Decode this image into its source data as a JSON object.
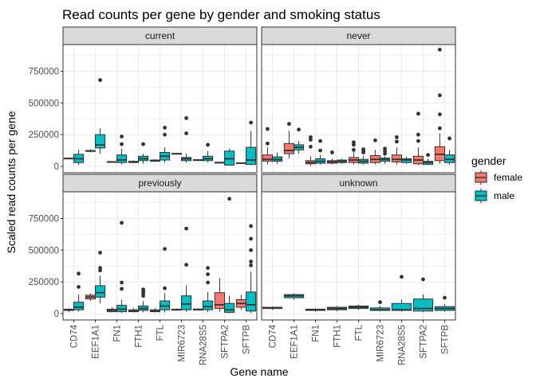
{
  "chart_data": {
    "type": "boxplot",
    "title": "Read counts per gene by gender and smoking status",
    "xlabel": "Gene name",
    "ylabel": "Scaled read counts per gene",
    "ylim": [
      -50000,
      960000
    ],
    "y_ticks": [
      0,
      250000,
      500000,
      750000
    ],
    "y_tick_labels": [
      "0",
      "250000",
      "500000",
      "750000"
    ],
    "categories": [
      "CD74",
      "EEF1A1",
      "FN1",
      "FTH1",
      "FTL",
      "MIR6723",
      "RNA28S5",
      "SFTPA2",
      "SFTPB"
    ],
    "legend": {
      "title": "gender",
      "position": "right",
      "entries": [
        {
          "label": "female",
          "color": "#F8766D"
        },
        {
          "label": "male",
          "color": "#00BFC4"
        }
      ]
    },
    "grid": true,
    "colors": {
      "female": "#F8766D",
      "male": "#00BFC4",
      "strip": "#D9D9D9",
      "grid": "#EBEBEB",
      "border": "#333333"
    },
    "panels": [
      {
        "label": "current",
        "boxes": [
          {
            "gene": "CD74",
            "gender": "female",
            "min": 55000,
            "q1": 60000,
            "median": 62000,
            "q3": 65000,
            "max": 68000,
            "outliers": []
          },
          {
            "gene": "CD74",
            "gender": "male",
            "min": 10000,
            "q1": 30000,
            "median": 60000,
            "q3": 95000,
            "max": 130000,
            "outliers": []
          },
          {
            "gene": "EEF1A1",
            "gender": "female",
            "min": 110000,
            "q1": 118000,
            "median": 122000,
            "q3": 125000,
            "max": 135000,
            "outliers": []
          },
          {
            "gene": "EEF1A1",
            "gender": "male",
            "min": 100000,
            "q1": 145000,
            "median": 170000,
            "q3": 250000,
            "max": 300000,
            "outliers": [
              680000
            ]
          },
          {
            "gene": "FN1",
            "gender": "female",
            "min": 30000,
            "q1": 32000,
            "median": 35000,
            "q3": 38000,
            "max": 40000,
            "outliers": []
          },
          {
            "gene": "FN1",
            "gender": "male",
            "min": 15000,
            "q1": 30000,
            "median": 50000,
            "q3": 90000,
            "max": 140000,
            "outliers": [
              175000,
              235000
            ]
          },
          {
            "gene": "FTH1",
            "gender": "female",
            "min": 25000,
            "q1": 30000,
            "median": 35000,
            "q3": 40000,
            "max": 45000,
            "outliers": []
          },
          {
            "gene": "FTH1",
            "gender": "male",
            "min": 20000,
            "q1": 45000,
            "median": 60000,
            "q3": 80000,
            "max": 100000,
            "outliers": [
              175000
            ]
          },
          {
            "gene": "FTL",
            "gender": "female",
            "min": 35000,
            "q1": 40000,
            "median": 45000,
            "q3": 50000,
            "max": 55000,
            "outliers": []
          },
          {
            "gene": "FTL",
            "gender": "male",
            "min": 30000,
            "q1": 50000,
            "median": 80000,
            "q3": 110000,
            "max": 150000,
            "outliers": [
              250000,
              305000
            ]
          },
          {
            "gene": "MIR6723",
            "gender": "female",
            "min": 95000,
            "q1": 97000,
            "median": 100000,
            "q3": 102000,
            "max": 105000,
            "outliers": []
          },
          {
            "gene": "MIR6723",
            "gender": "male",
            "min": 30000,
            "q1": 45000,
            "median": 60000,
            "q3": 70000,
            "max": 100000,
            "outliers": [
              260000,
              380000
            ]
          },
          {
            "gene": "RNA28S5",
            "gender": "female",
            "min": 45000,
            "q1": 48000,
            "median": 50000,
            "q3": 52000,
            "max": 55000,
            "outliers": []
          },
          {
            "gene": "RNA28S5",
            "gender": "male",
            "min": 30000,
            "q1": 45000,
            "median": 60000,
            "q3": 80000,
            "max": 120000,
            "outliers": [
              170000
            ]
          },
          {
            "gene": "SFTPA2",
            "gender": "female",
            "min": 25000,
            "q1": 28000,
            "median": 30000,
            "q3": 32000,
            "max": 35000,
            "outliers": []
          },
          {
            "gene": "SFTPA2",
            "gender": "male",
            "min": 10000,
            "q1": 10000,
            "median": 60000,
            "q3": 120000,
            "max": 140000,
            "outliers": []
          },
          {
            "gene": "SFTPB",
            "gender": "female",
            "min": 20000,
            "q1": 23000,
            "median": 25000,
            "q3": 28000,
            "max": 30000,
            "outliers": []
          },
          {
            "gene": "SFTPB",
            "gender": "male",
            "min": 10000,
            "q1": 15000,
            "median": 50000,
            "q3": 150000,
            "max": 280000,
            "outliers": [
              345000
            ]
          }
        ]
      },
      {
        "label": "never",
        "boxes": [
          {
            "gene": "CD74",
            "gender": "female",
            "min": 15000,
            "q1": 40000,
            "median": 55000,
            "q3": 90000,
            "max": 150000,
            "outliers": [
              180000,
              295000
            ]
          },
          {
            "gene": "CD74",
            "gender": "male",
            "min": 20000,
            "q1": 40000,
            "median": 55000,
            "q3": 75000,
            "max": 110000,
            "outliers": []
          },
          {
            "gene": "EEF1A1",
            "gender": "female",
            "min": 60000,
            "q1": 100000,
            "median": 125000,
            "q3": 180000,
            "max": 280000,
            "outliers": [
              335000
            ]
          },
          {
            "gene": "EEF1A1",
            "gender": "male",
            "min": 100000,
            "q1": 130000,
            "median": 150000,
            "q3": 170000,
            "max": 200000,
            "outliers": [
              290000
            ]
          },
          {
            "gene": "FN1",
            "gender": "female",
            "min": 5000,
            "q1": 20000,
            "median": 30000,
            "q3": 45000,
            "max": 80000,
            "outliers": [
              155000,
              210000,
              230000
            ]
          },
          {
            "gene": "FN1",
            "gender": "male",
            "min": 15000,
            "q1": 25000,
            "median": 40000,
            "q3": 60000,
            "max": 90000,
            "outliers": [
              125000,
              200000
            ]
          },
          {
            "gene": "FTH1",
            "gender": "female",
            "min": 15000,
            "q1": 25000,
            "median": 35000,
            "q3": 45000,
            "max": 60000,
            "outliers": [
              110000
            ]
          },
          {
            "gene": "FTH1",
            "gender": "male",
            "min": 20000,
            "q1": 30000,
            "median": 40000,
            "q3": 50000,
            "max": 60000,
            "outliers": []
          },
          {
            "gene": "FTL",
            "gender": "female",
            "min": 15000,
            "q1": 30000,
            "median": 50000,
            "q3": 70000,
            "max": 120000,
            "outliers": [
              130000,
              170000,
              190000
            ]
          },
          {
            "gene": "FTL",
            "gender": "male",
            "min": 15000,
            "q1": 25000,
            "median": 40000,
            "q3": 55000,
            "max": 80000,
            "outliers": [
              110000,
              125000,
              135000
            ]
          },
          {
            "gene": "MIR6723",
            "gender": "female",
            "min": 15000,
            "q1": 30000,
            "median": 55000,
            "q3": 85000,
            "max": 130000,
            "outliers": [
              205000
            ]
          },
          {
            "gene": "MIR6723",
            "gender": "male",
            "min": 20000,
            "q1": 40000,
            "median": 55000,
            "q3": 65000,
            "max": 80000,
            "outliers": [
              100000,
              120000,
              140000
            ]
          },
          {
            "gene": "RNA28S5",
            "gender": "female",
            "min": 15000,
            "q1": 35000,
            "median": 55000,
            "q3": 90000,
            "max": 150000,
            "outliers": [
              195000,
              230000
            ]
          },
          {
            "gene": "RNA28S5",
            "gender": "male",
            "min": 20000,
            "q1": 30000,
            "median": 50000,
            "q3": 60000,
            "max": 75000,
            "outliers": []
          },
          {
            "gene": "SFTPA2",
            "gender": "female",
            "min": 10000,
            "q1": 20000,
            "median": 50000,
            "q3": 80000,
            "max": 150000,
            "outliers": [
              200000,
              250000,
              415000
            ]
          },
          {
            "gene": "SFTPA2",
            "gender": "male",
            "min": 10000,
            "q1": 15000,
            "median": 30000,
            "q3": 40000,
            "max": 60000,
            "outliers": [
              90000
            ]
          },
          {
            "gene": "SFTPB",
            "gender": "female",
            "min": 20000,
            "q1": 45000,
            "median": 95000,
            "q3": 155000,
            "max": 260000,
            "outliers": [
              300000,
              410000,
              560000,
              920000
            ]
          },
          {
            "gene": "SFTPB",
            "gender": "male",
            "min": 15000,
            "q1": 30000,
            "median": 55000,
            "q3": 90000,
            "max": 130000,
            "outliers": [
              220000
            ]
          }
        ]
      },
      {
        "label": "previously",
        "boxes": [
          {
            "gene": "CD74",
            "gender": "female",
            "min": 10000,
            "q1": 25000,
            "median": 30000,
            "q3": 35000,
            "max": 40000,
            "outliers": []
          },
          {
            "gene": "CD74",
            "gender": "male",
            "min": 15000,
            "q1": 30000,
            "median": 50000,
            "q3": 90000,
            "max": 150000,
            "outliers": [
              210000,
              315000
            ]
          },
          {
            "gene": "EEF1A1",
            "gender": "female",
            "min": 100000,
            "q1": 115000,
            "median": 130000,
            "q3": 145000,
            "max": 160000,
            "outliers": []
          },
          {
            "gene": "EEF1A1",
            "gender": "male",
            "min": 80000,
            "q1": 130000,
            "median": 165000,
            "q3": 220000,
            "max": 300000,
            "outliers": [
              340000,
              360000,
              480000
            ]
          },
          {
            "gene": "FN1",
            "gender": "female",
            "min": 10000,
            "q1": 15000,
            "median": 25000,
            "q3": 35000,
            "max": 50000,
            "outliers": []
          },
          {
            "gene": "FN1",
            "gender": "male",
            "min": 5000,
            "q1": 15000,
            "median": 35000,
            "q3": 65000,
            "max": 110000,
            "outliers": [
              195000,
              245000,
              715000
            ]
          },
          {
            "gene": "FTH1",
            "gender": "female",
            "min": 10000,
            "q1": 15000,
            "median": 20000,
            "q3": 30000,
            "max": 45000,
            "outliers": []
          },
          {
            "gene": "FTH1",
            "gender": "male",
            "min": 10000,
            "q1": 25000,
            "median": 40000,
            "q3": 60000,
            "max": 100000,
            "outliers": [
              140000,
              160000,
              175000,
              190000
            ]
          },
          {
            "gene": "FTL",
            "gender": "female",
            "min": 10000,
            "q1": 15000,
            "median": 20000,
            "q3": 30000,
            "max": 45000,
            "outliers": []
          },
          {
            "gene": "FTL",
            "gender": "male",
            "min": 10000,
            "q1": 30000,
            "median": 60000,
            "q3": 100000,
            "max": 160000,
            "outliers": [
              200000,
              510000
            ]
          },
          {
            "gene": "MIR6723",
            "gender": "female",
            "min": 25000,
            "q1": 28000,
            "median": 30000,
            "q3": 35000,
            "max": 40000,
            "outliers": []
          },
          {
            "gene": "MIR6723",
            "gender": "male",
            "min": 15000,
            "q1": 30000,
            "median": 75000,
            "q3": 140000,
            "max": 220000,
            "outliers": [
              385000,
              670000
            ]
          },
          {
            "gene": "RNA28S5",
            "gender": "female",
            "min": 25000,
            "q1": 28000,
            "median": 32000,
            "q3": 36000,
            "max": 40000,
            "outliers": []
          },
          {
            "gene": "RNA28S5",
            "gender": "male",
            "min": 10000,
            "q1": 30000,
            "median": 55000,
            "q3": 100000,
            "max": 170000,
            "outliers": [
              245000,
              310000,
              360000
            ]
          },
          {
            "gene": "SFTPA2",
            "gender": "female",
            "min": 15000,
            "q1": 40000,
            "median": 70000,
            "q3": 165000,
            "max": 280000,
            "outliers": []
          },
          {
            "gene": "SFTPA2",
            "gender": "male",
            "min": 5000,
            "q1": 10000,
            "median": 30000,
            "q3": 80000,
            "max": 140000,
            "outliers": [
              905000
            ]
          },
          {
            "gene": "SFTPB",
            "gender": "female",
            "min": 30000,
            "q1": 50000,
            "median": 80000,
            "q3": 110000,
            "max": 150000,
            "outliers": []
          },
          {
            "gene": "SFTPB",
            "gender": "male",
            "min": 5000,
            "q1": 20000,
            "median": 70000,
            "q3": 170000,
            "max": 330000,
            "outliers": [
              380000,
              410000,
              500000,
              590000,
              690000
            ]
          }
        ]
      },
      {
        "label": "unknown",
        "boxes": [
          {
            "gene": "CD74",
            "gender": "male",
            "min": 30000,
            "q1": 40000,
            "median": 45000,
            "q3": 50000,
            "max": 55000,
            "outliers": []
          },
          {
            "gene": "EEF1A1",
            "gender": "male",
            "min": 110000,
            "q1": 125000,
            "median": 140000,
            "q3": 150000,
            "max": 160000,
            "outliers": []
          },
          {
            "gene": "FN1",
            "gender": "male",
            "min": 15000,
            "q1": 25000,
            "median": 30000,
            "q3": 35000,
            "max": 40000,
            "outliers": []
          },
          {
            "gene": "FTH1",
            "gender": "male",
            "min": 20000,
            "q1": 30000,
            "median": 40000,
            "q3": 50000,
            "max": 60000,
            "outliers": []
          },
          {
            "gene": "FTL",
            "gender": "male",
            "min": 30000,
            "q1": 40000,
            "median": 50000,
            "q3": 60000,
            "max": 70000,
            "outliers": []
          },
          {
            "gene": "MIR6723",
            "gender": "male",
            "min": 20000,
            "q1": 25000,
            "median": 30000,
            "q3": 45000,
            "max": 60000,
            "outliers": [
              90000
            ]
          },
          {
            "gene": "RNA28S5",
            "gender": "male",
            "min": 15000,
            "q1": 25000,
            "median": 30000,
            "q3": 80000,
            "max": 110000,
            "outliers": [
              290000
            ]
          },
          {
            "gene": "SFTPA2",
            "gender": "male",
            "min": 10000,
            "q1": 20000,
            "median": 40000,
            "q3": 115000,
            "max": 150000,
            "outliers": [
              270000
            ]
          },
          {
            "gene": "SFTPB",
            "gender": "male",
            "min": 15000,
            "q1": 25000,
            "median": 40000,
            "q3": 55000,
            "max": 75000,
            "outliers": [
              125000
            ]
          }
        ]
      }
    ]
  }
}
